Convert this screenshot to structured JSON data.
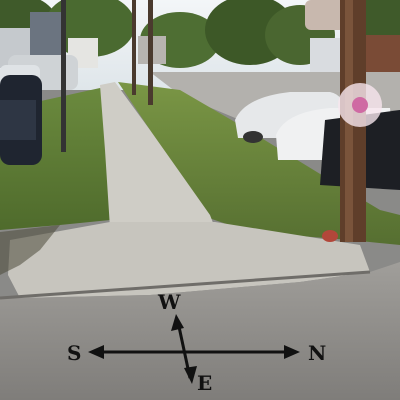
{
  "compass": {
    "north": "N",
    "south": "S",
    "east": "E",
    "west": "W"
  },
  "colors": {
    "sky": "#e9eef2",
    "grass": "#5b7a34",
    "sidewalk": "#c9c7c0",
    "road": "#8e8c88",
    "pole": "#6a4a34",
    "arrows": "#111111"
  }
}
